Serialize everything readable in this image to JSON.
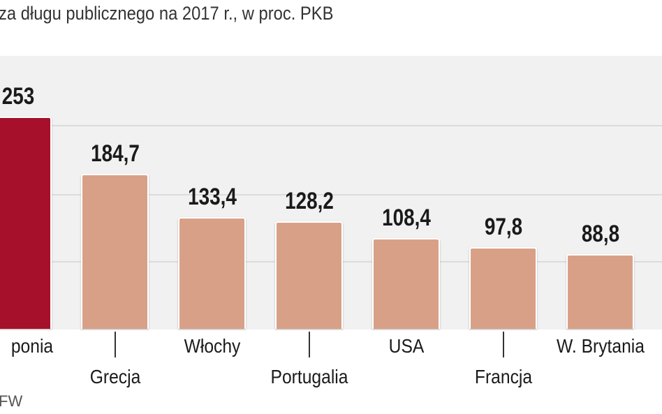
{
  "chart_data": {
    "type": "bar",
    "title": "za długu publicznego na 2017 r., w proc. PKB",
    "categories": [
      "Japonia",
      "Grecja",
      "Włochy",
      "Portugalia",
      "USA",
      "Francja",
      "W. Brytania"
    ],
    "category_labels_visible": [
      "ponia",
      "Grecja",
      "Włochy",
      "Portugalia",
      "USA",
      "Francja",
      "W. Brytania"
    ],
    "values": [
      253,
      184.7,
      133.4,
      128.2,
      108.4,
      97.8,
      88.8
    ],
    "value_labels": [
      "253",
      "184,7",
      "133,4",
      "128,2",
      "108,4",
      "97,8",
      "88,8"
    ],
    "ylim": [
      0,
      320
    ],
    "colors": {
      "highlight": "#a6102a",
      "default": "#d9a088",
      "plot_bg": "#f1f1f1"
    },
    "source": "FW"
  }
}
